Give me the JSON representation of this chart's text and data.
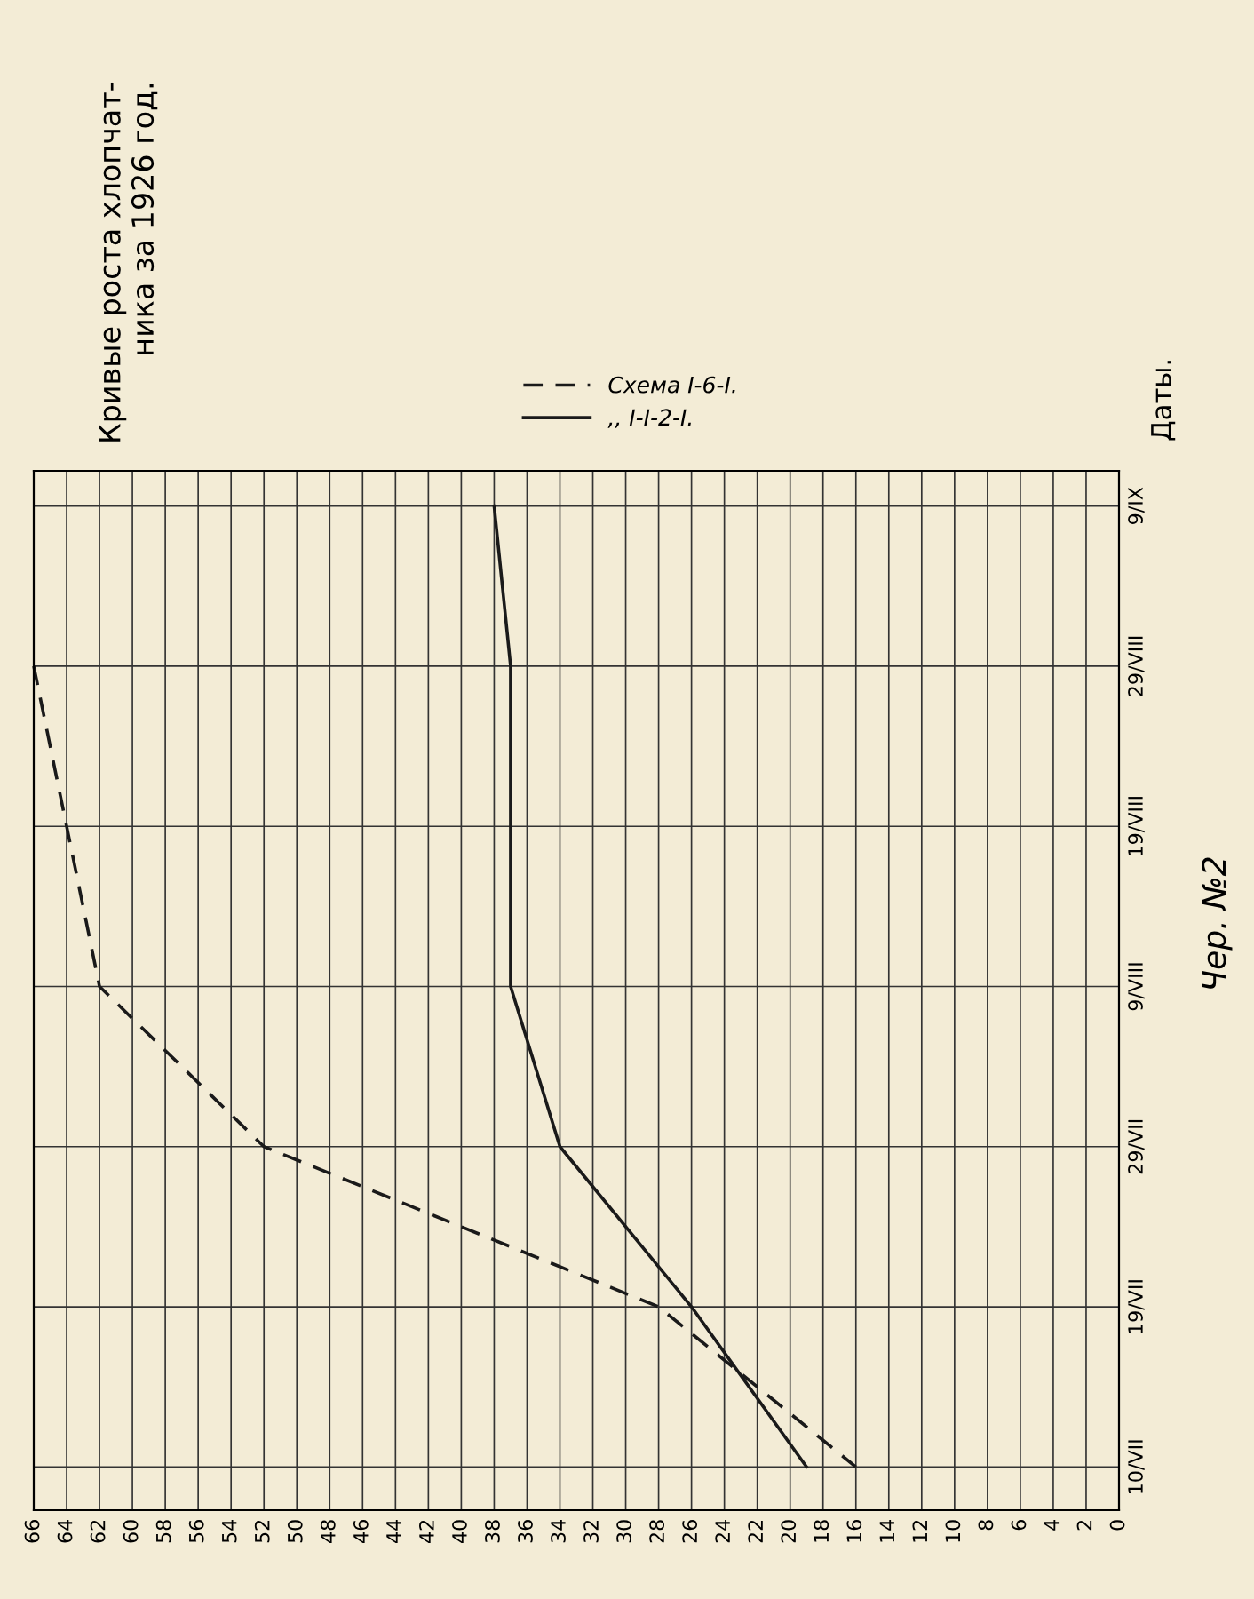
{
  "chart_data": {
    "type": "line",
    "orientation": "horizontal",
    "title": "Кривые роста хлопчат-\nника за 1926 год.",
    "ylabel": "Даты.",
    "annotations": [
      "Чер. №2"
    ],
    "categories": [
      "9/IX",
      "29/VIII",
      "19/VIII",
      "9/VIII",
      "29/VII",
      "19/VII",
      "10/VII"
    ],
    "series": [
      {
        "name": "Схема I-6-I.",
        "color": "#1a1a1a",
        "line_style": "dashed",
        "values": [
          null,
          66,
          64,
          62,
          52,
          28,
          16
        ]
      },
      {
        "name": ",, I-I-2-I.",
        "color": "#1a1a1a",
        "line_style": "solid",
        "values": [
          38,
          37,
          37,
          37,
          34,
          26,
          19
        ]
      }
    ],
    "xlim": [
      66,
      0
    ],
    "xticks": [
      0,
      2,
      4,
      6,
      8,
      10,
      12,
      14,
      16,
      18,
      20,
      22,
      24,
      26,
      28,
      30,
      32,
      34,
      36,
      38,
      40,
      42,
      44,
      46,
      48,
      50,
      52,
      54,
      56,
      58,
      60,
      62,
      64,
      66
    ],
    "grid": true,
    "legend": "top",
    "marker": "none"
  }
}
